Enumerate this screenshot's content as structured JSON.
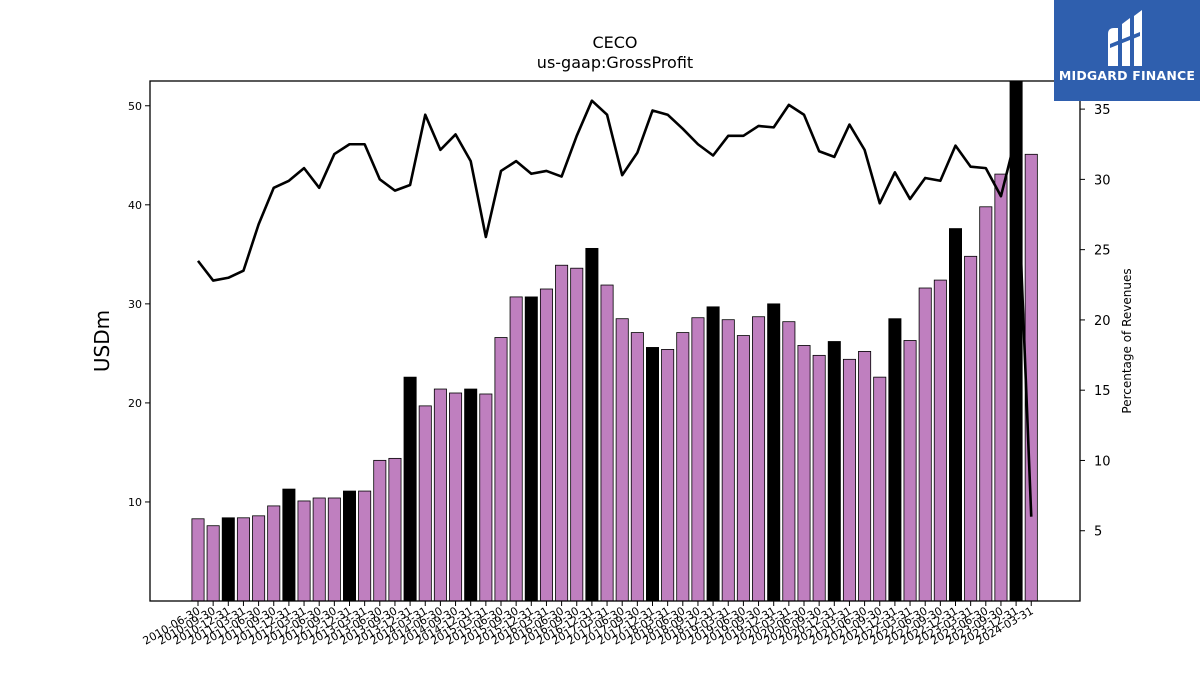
{
  "chart_data": {
    "type": "bar",
    "title": "CECO",
    "subtitle": "us-gaap:GrossProfit",
    "ylabel": "USDm",
    "y2label": "Percentage of Revenues",
    "ylim": [
      0,
      52.5
    ],
    "y2lim": [
      0,
      37
    ],
    "yticks": [
      10,
      20,
      30,
      40,
      50
    ],
    "y2ticks": [
      5,
      10,
      15,
      20,
      25,
      30,
      35
    ],
    "categories": [
      "2010-06-30",
      "2010-09-30",
      "2010-12-31",
      "2011-03-31",
      "2011-06-30",
      "2011-09-30",
      "2011-12-31",
      "2012-03-31",
      "2012-06-30",
      "2012-09-30",
      "2012-12-31",
      "2013-03-31",
      "2013-06-30",
      "2013-09-30",
      "2013-12-31",
      "2014-03-31",
      "2014-06-30",
      "2014-09-30",
      "2014-12-31",
      "2015-03-31",
      "2015-06-30",
      "2015-09-30",
      "2015-12-31",
      "2016-03-31",
      "2016-06-30",
      "2016-09-30",
      "2016-12-31",
      "2017-03-31",
      "2017-06-30",
      "2017-09-30",
      "2017-12-31",
      "2018-03-31",
      "2018-06-30",
      "2018-09-30",
      "2018-12-31",
      "2019-03-31",
      "2019-06-30",
      "2019-09-30",
      "2019-12-31",
      "2020-03-31",
      "2020-06-30",
      "2020-09-30",
      "2020-12-31",
      "2021-03-31",
      "2021-06-30",
      "2021-09-30",
      "2021-12-31",
      "2022-03-31",
      "2022-06-30",
      "2022-09-30",
      "2022-12-31",
      "2023-03-31",
      "2023-06-30",
      "2023-09-30",
      "2023-12-31",
      "2024-03-31"
    ],
    "x_tick_labels": [
      "2010-06-30",
      "2010-09-30",
      "2010-12-31",
      "2011-03-31",
      "2011-06-30",
      "2011-09-30",
      "2011-12-31",
      "2012-03-31",
      "2012-06-30",
      "2012-09-30",
      "2012-12-31",
      "2013-03-31",
      "2013-06-30",
      "2013-09-30",
      "2013-12-31",
      "2014-03-31",
      "2014-06-30",
      "2014-09-30",
      "2014-12-31",
      "2015-03-31",
      "2015-06-30",
      "2015-09-30",
      "2015-12-31",
      "2016-03-31",
      "2016-06-30",
      "2016-09-30",
      "2016-12-31",
      "2017-03-31",
      "2017-06-30",
      "2017-09-30",
      "2017-12-31",
      "2018-03-31",
      "2018-06-30",
      "2018-09-30",
      "2018-12-31",
      "2019-03-31",
      "2019-06-30",
      "2019-09-30",
      "2019-12-31",
      "2020-03-31",
      "2020-06-30",
      "2020-09-30",
      "2020-12-31",
      "2021-03-31",
      "2021-06-30",
      "2021-09-30",
      "2021-12-31",
      "2022-03-31",
      "2022-06-30",
      "2022-09-30",
      "2022-12-31",
      "2023-03-31",
      "2023-06-30",
      "2023-09-30",
      "2023-12-31",
      "2024-03-31"
    ],
    "series": [
      {
        "type": "bar",
        "axis": "left",
        "values": [
          8.3,
          7.6,
          8.4,
          8.4,
          8.6,
          9.6,
          11.3,
          10.1,
          10.4,
          10.4,
          11.1,
          11.1,
          14.2,
          14.4,
          22.6,
          19.7,
          21.4,
          21.0,
          21.4,
          20.9,
          26.6,
          30.7,
          30.7,
          31.5,
          33.9,
          33.6,
          35.6,
          31.9,
          28.5,
          27.1,
          25.6,
          25.4,
          27.1,
          28.6,
          29.7,
          28.4,
          26.8,
          28.7,
          30.0,
          28.2,
          25.8,
          24.8,
          26.2,
          24.4,
          25.2,
          22.6,
          28.5,
          26.3,
          31.6,
          32.4,
          37.6,
          34.8,
          39.8,
          43.1,
          52.8,
          45.1
        ],
        "highlight": [
          false,
          false,
          true,
          false,
          false,
          false,
          true,
          false,
          false,
          false,
          true,
          false,
          false,
          false,
          true,
          false,
          false,
          false,
          true,
          false,
          false,
          false,
          true,
          false,
          false,
          false,
          true,
          false,
          false,
          false,
          true,
          false,
          false,
          false,
          true,
          false,
          false,
          false,
          true,
          false,
          false,
          false,
          true,
          false,
          false,
          false,
          true,
          false,
          false,
          false,
          true,
          false,
          false,
          false,
          true,
          false
        ],
        "color": "#bf7fbf",
        "highlight_color": "#000000"
      },
      {
        "type": "line",
        "axis": "right",
        "values": [
          24.2,
          22.8,
          23.0,
          23.5,
          26.8,
          29.4,
          29.9,
          30.8,
          29.4,
          31.8,
          32.5,
          32.5,
          30.0,
          29.2,
          29.6,
          34.6,
          32.1,
          33.2,
          31.3,
          25.9,
          30.6,
          31.3,
          30.4,
          30.6,
          30.2,
          33.1,
          35.6,
          34.6,
          30.3,
          31.9,
          34.9,
          34.6,
          33.6,
          32.5,
          31.7,
          33.1,
          33.1,
          33.8,
          33.7,
          35.3,
          34.6,
          32.0,
          31.6,
          33.9,
          32.1,
          28.3,
          30.5,
          28.6,
          30.1,
          29.9,
          32.4,
          30.9,
          30.8,
          28.8,
          33.1,
          6.0
        ],
        "color": "#000000"
      }
    ]
  },
  "logo": {
    "text": "MIDGARD FINANCE",
    "color": "#2f5fae"
  }
}
